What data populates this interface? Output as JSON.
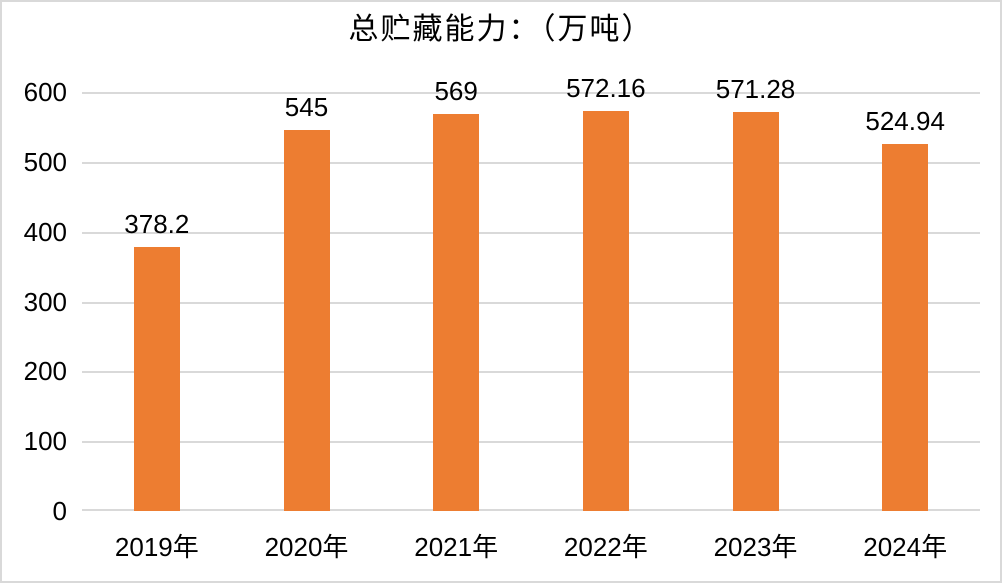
{
  "chart_data": {
    "type": "bar",
    "title": "总贮藏能力：（万吨）",
    "categories": [
      "2019年",
      "2020年",
      "2021年",
      "2022年",
      "2023年",
      "2024年"
    ],
    "values": [
      378.2,
      545,
      569,
      572.16,
      571.28,
      524.94
    ],
    "data_labels": [
      "378.2",
      "545",
      "569",
      "572.16",
      "571.28",
      "524.94"
    ],
    "xlabel": "",
    "ylabel": "",
    "ylim": [
      0,
      600
    ],
    "yticks": [
      0,
      100,
      200,
      300,
      400,
      500,
      600
    ],
    "grid": true,
    "legend_position": "none",
    "bar_color": "#ED7D31",
    "gridline_color": "#D9D9D9",
    "axis_line_color": "#D9D9D9",
    "text_color": "#000000",
    "background_color": "#FFFFFF",
    "border_color": "#D9D9D9"
  }
}
